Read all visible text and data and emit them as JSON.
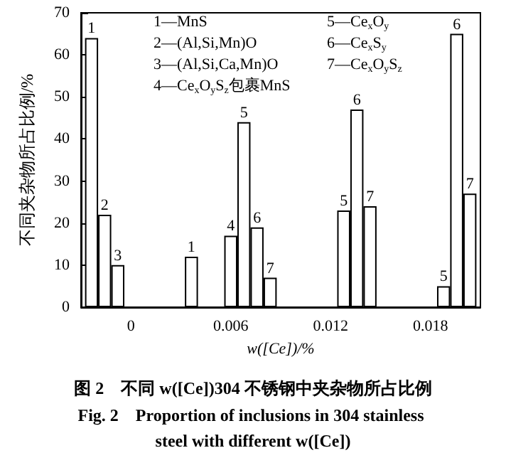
{
  "chart_data": {
    "type": "bar",
    "title": "图 2　不同 w([Ce])304 不锈钢中夹杂物所占比例",
    "subtitle": "Fig. 2　Proportion of inclusions in 304 stainless steel with different w([Ce])",
    "xlabel": "w([Ce])/%",
    "ylabel": "不同夹杂物所占比例/%",
    "categories": [
      "0",
      "0.006",
      "0.012",
      "0.018"
    ],
    "series": [
      {
        "name": "1",
        "color": "#ffffff",
        "values": [
          64,
          12,
          null,
          null
        ]
      },
      {
        "name": "2",
        "color": "#ffffff",
        "values": [
          22,
          null,
          null,
          null
        ]
      },
      {
        "name": "3",
        "color": "#ffffff",
        "values": [
          10,
          null,
          null,
          null
        ]
      },
      {
        "name": "4",
        "color": "#ffffff",
        "values": [
          null,
          17,
          null,
          null
        ]
      },
      {
        "name": "5",
        "color": "#ffffff",
        "values": [
          null,
          44,
          23,
          5
        ]
      },
      {
        "name": "6",
        "color": "#ffffff",
        "values": [
          null,
          19,
          47,
          65
        ]
      },
      {
        "name": "7",
        "color": "#ffffff",
        "values": [
          null,
          7,
          24,
          27
        ]
      }
    ],
    "annotations": [
      "1—MnS",
      "2—(Al,Si,Mn)O",
      "3—(Al,Si,Ca,Mn)O",
      "4—Ce$_{x}$O$_{y}$S$_{z}$包裹MnS",
      "5—Ce$_{x}$O$_{y}$",
      "6—Ce$_{x}$S$_{y}$",
      "7—Ce$_{x}$O$_{y}$S$_{z}$"
    ],
    "ylim": [
      0,
      70
    ],
    "yticks": [
      0,
      10,
      20,
      30,
      40,
      50,
      60,
      70
    ],
    "grid": false
  }
}
